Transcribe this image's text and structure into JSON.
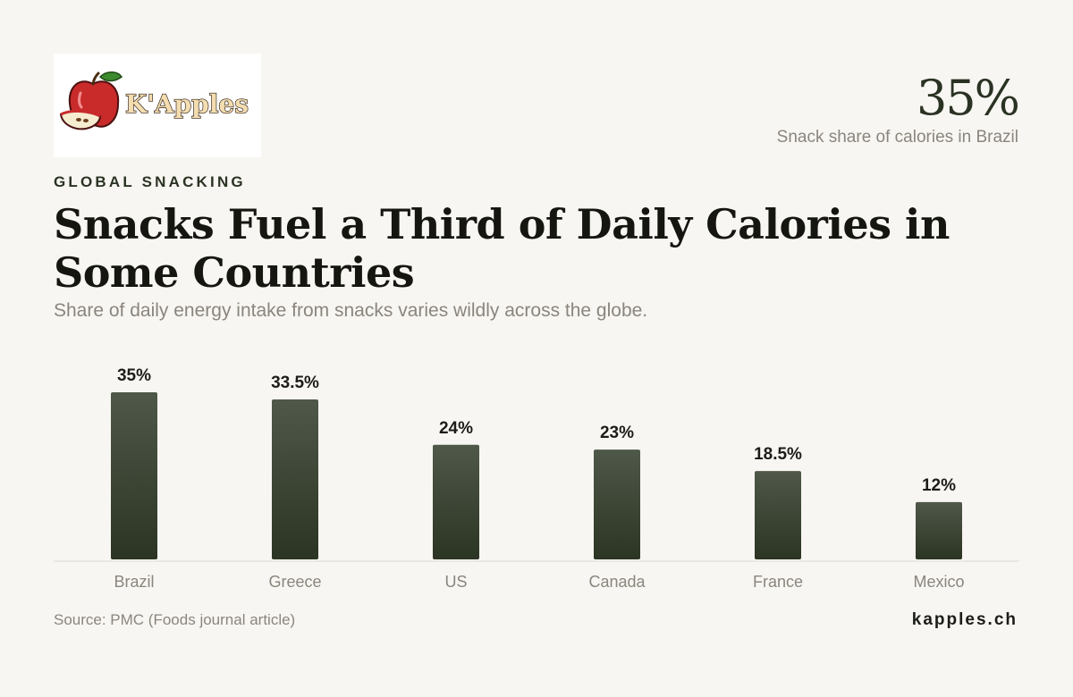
{
  "logo": {
    "text": "K'Apples"
  },
  "highlight": {
    "value": "35%",
    "label": "Snack share of calories in Brazil"
  },
  "kicker": "GLOBAL SNACKING",
  "title": "Snacks Fuel a Third of Daily Calories in Some Countries",
  "subtitle": "Share of daily energy intake from snacks varies wildly across the globe.",
  "chart_data": {
    "type": "bar",
    "categories": [
      "Brazil",
      "Greece",
      "US",
      "Canada",
      "France",
      "Mexico"
    ],
    "values": [
      35,
      33.5,
      24,
      23,
      18.5,
      12
    ],
    "value_labels": [
      "35%",
      "33.5%",
      "24%",
      "23%",
      "18.5%",
      "12%"
    ],
    "title": "",
    "xlabel": "",
    "ylabel": "",
    "ylim": [
      0,
      35
    ],
    "grid": false,
    "colors": {
      "bar_top": "#4f5849",
      "bar_bottom": "#2c3423",
      "baseline": "#dcd9d3",
      "value_label": "#1c1c18",
      "category_label": "#8a857e"
    }
  },
  "footer": {
    "source": "Source: PMC (Foods journal article)",
    "brand": "kapples.ch"
  }
}
